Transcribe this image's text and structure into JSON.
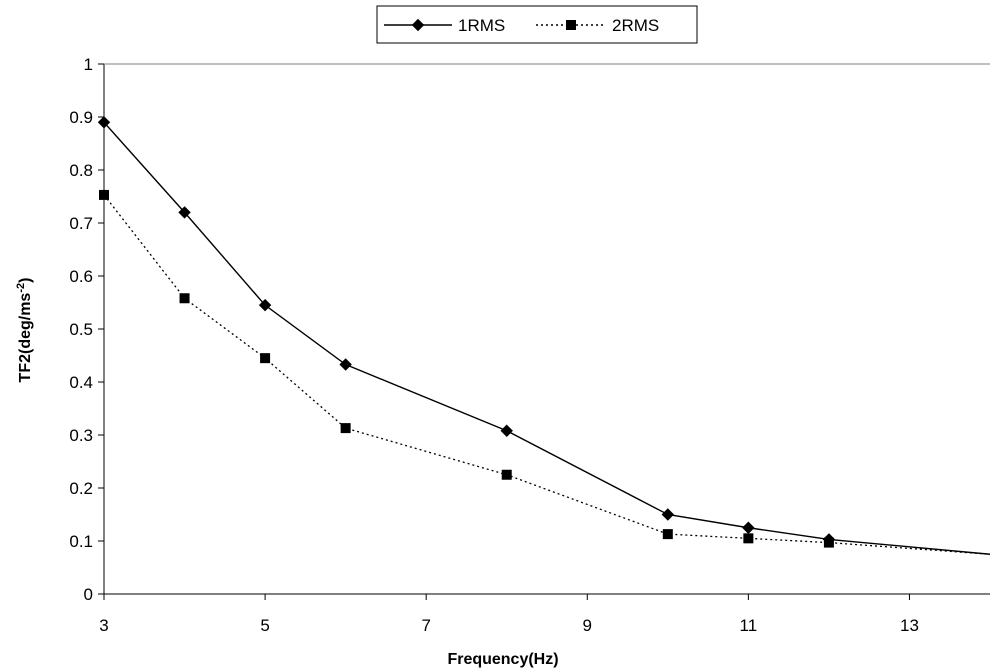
{
  "chart_data": {
    "type": "line",
    "xlabel": "Frequency(Hz)",
    "ylabel": {
      "base": "TF2(deg/ms",
      "superscript": "-2",
      "suffix": ")"
    },
    "xlim": [
      3,
      14
    ],
    "ylim": [
      0,
      1
    ],
    "x_ticks": [
      3,
      5,
      7,
      9,
      11,
      13
    ],
    "y_ticks": [
      0,
      0.1,
      0.2,
      0.3,
      0.4,
      0.5,
      0.6,
      0.7,
      0.8,
      0.9,
      1
    ],
    "grid": false,
    "legend_position": "top-center",
    "series": [
      {
        "name": "1RMS",
        "marker": "diamond",
        "line_style": "solid",
        "color": "#000000",
        "x": [
          3,
          4,
          5,
          6,
          8,
          10,
          11,
          12,
          14
        ],
        "y": [
          0.89,
          0.72,
          0.545,
          0.433,
          0.308,
          0.15,
          0.125,
          0.103,
          0.075
        ]
      },
      {
        "name": "2RMS",
        "marker": "square",
        "line_style": "dotted",
        "color": "#000000",
        "x": [
          3,
          4,
          5,
          6,
          8,
          10,
          11,
          12,
          14
        ],
        "y": [
          0.753,
          0.558,
          0.445,
          0.313,
          0.225,
          0.113,
          0.105,
          0.097,
          0.075
        ]
      }
    ]
  }
}
